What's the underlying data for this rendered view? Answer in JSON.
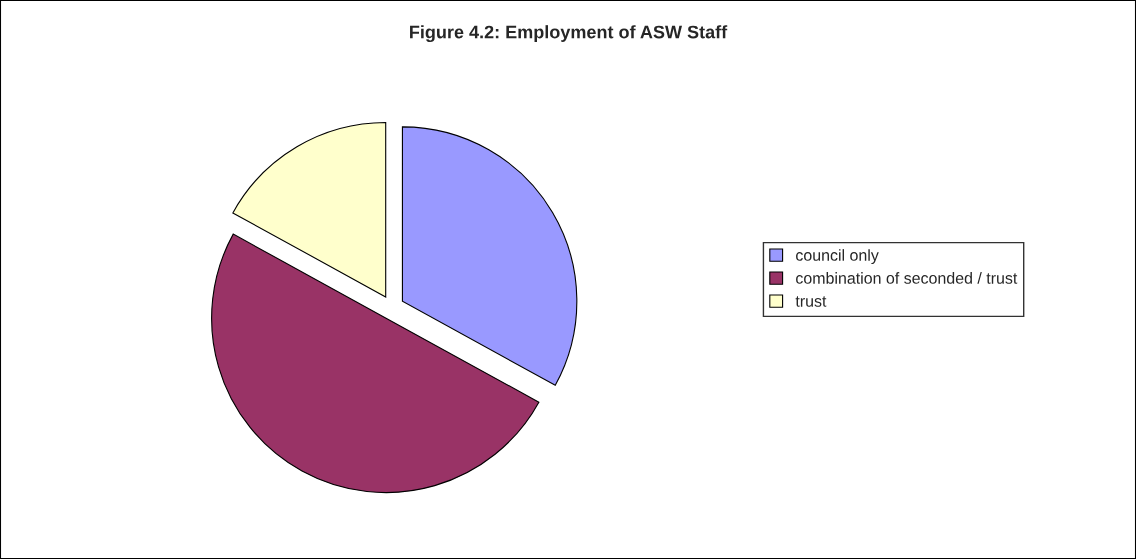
{
  "chart_data": {
    "type": "pie",
    "title": "Figure 4.2: Employment of ASW Staff",
    "categories": [
      "council only",
      "combination of seconded / trust",
      "trust"
    ],
    "values": [
      33,
      50,
      17
    ],
    "colors": [
      "#9999ff",
      "#993366",
      "#ffffcc"
    ],
    "legend": "right"
  }
}
